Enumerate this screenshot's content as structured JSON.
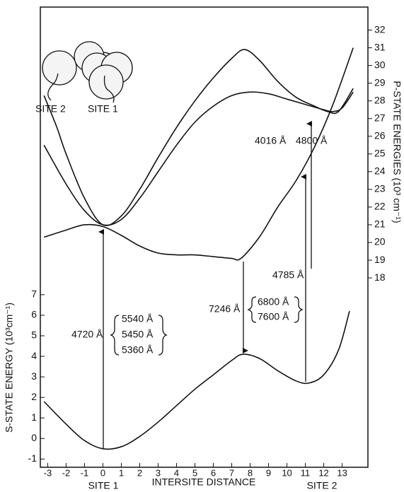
{
  "chart_data": {
    "type": "line",
    "xlabel": "INTERSITE DISTANCE",
    "ylabel": "S-STATE ENERGY (10³cm⁻¹)",
    "y2label": "P-STATE ENERGIES (10³ cm⁻¹)",
    "xlim": [
      -3.4,
      14.4
    ],
    "xticks": [
      -3,
      -2,
      -1,
      0,
      1,
      2,
      3,
      4,
      5,
      6,
      7,
      8,
      9,
      10,
      11,
      12,
      13
    ],
    "ylim": [
      -1.4,
      21
    ],
    "yticks": [
      -1,
      0,
      1,
      2,
      3,
      4,
      5,
      6,
      7
    ],
    "y2lim": [
      7.3,
      33.3
    ],
    "y2ticks": [
      18,
      19,
      20,
      21,
      22,
      23,
      24,
      25,
      26,
      27,
      28,
      29,
      30,
      31,
      32
    ],
    "site_labels": [
      "SITE 1",
      "SITE 2"
    ],
    "inset_labels": [
      "SITE 2",
      "SITE 1"
    ],
    "annotations": [
      "4720 Å",
      "5540 Å",
      "5450 Å",
      "5360 Å",
      "7246 Å",
      "6800 Å",
      "7600 Å",
      "4785 Å",
      "4016 Å",
      "4800 Å"
    ],
    "series": [
      {
        "color": "#111111",
        "axis": "y",
        "x": [
          -3.2,
          -2,
          -1,
          0,
          1,
          2,
          3,
          4,
          5,
          6,
          7,
          7.6,
          8.5,
          9.5,
          10.5,
          11.2,
          12,
          12.8,
          13.4
        ],
        "values": [
          1.8,
          0.7,
          -0.1,
          -0.5,
          -0.4,
          0.1,
          0.8,
          1.6,
          2.4,
          3.1,
          3.8,
          4.1,
          3.9,
          3.3,
          2.8,
          2.7,
          3.1,
          4.3,
          6.2
        ]
      },
      {
        "color": "#111111",
        "axis": "y2",
        "x": [
          -3.2,
          -2,
          -1,
          0,
          1,
          2,
          3,
          4,
          5,
          6,
          7,
          7.5,
          8.5,
          9.5,
          10.5,
          11.5,
          12.5,
          13.6
        ],
        "values": [
          20.3,
          20.7,
          21.0,
          20.9,
          20.4,
          19.8,
          19.4,
          19.3,
          19.3,
          19.2,
          19.1,
          19.1,
          20.3,
          22.0,
          23.5,
          25.4,
          27.8,
          31
        ]
      },
      {
        "color": "#111111",
        "axis": "y2",
        "x": [
          -3.2,
          -2.5,
          -2,
          -1,
          0,
          1,
          2,
          3,
          4,
          5,
          6,
          7,
          7.7,
          8.5,
          9.5,
          10.5,
          11.5,
          12.2,
          12.8,
          13.6
        ],
        "values": [
          28.3,
          26.5,
          25,
          22.5,
          21,
          21.5,
          23,
          24.8,
          26.5,
          28,
          29.3,
          30.4,
          30.9,
          30.3,
          29.1,
          28.2,
          27.7,
          27.4,
          27.4,
          28.7
        ]
      },
      {
        "color": "#111111",
        "axis": "y2",
        "x": [
          -3.2,
          -2,
          -1,
          0,
          1,
          2,
          3,
          4,
          5,
          6,
          7,
          8,
          9,
          10,
          11,
          12,
          12.5,
          13,
          13.6
        ],
        "values": [
          25.5,
          23.3,
          21.8,
          21,
          21.3,
          22.5,
          24,
          25.5,
          26.8,
          27.7,
          28.3,
          28.5,
          28.4,
          28.1,
          27.8,
          27.5,
          27.4,
          27.6,
          28.5
        ]
      }
    ]
  }
}
